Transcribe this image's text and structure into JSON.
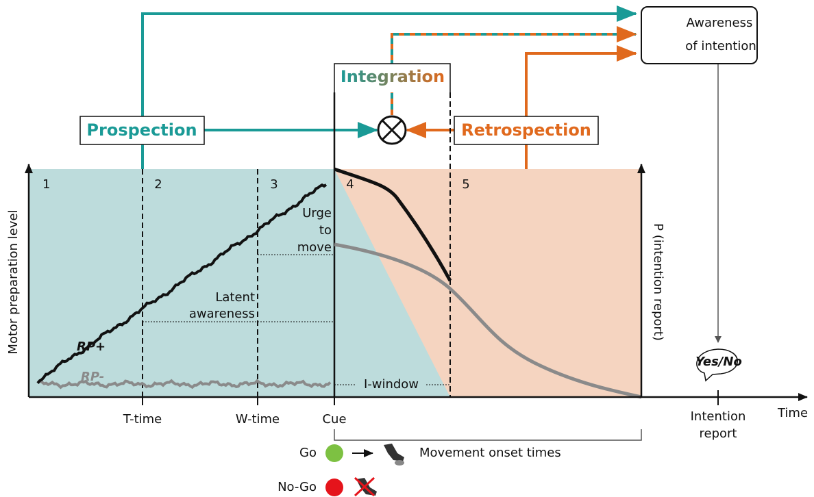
{
  "awareness_box": {
    "lines": [
      "Awareness",
      "of intention"
    ]
  },
  "integration": "Integration",
  "prospection": "Prospection",
  "retrospection": "Retrospection",
  "phases": [
    "1",
    "2",
    "3",
    "4",
    "5"
  ],
  "urge_label": [
    "Urge",
    "to",
    "move"
  ],
  "latent_label": [
    "Latent",
    "awareness"
  ],
  "rp_plus": "RP+",
  "rp_minus": "RP-",
  "i_window": "I-window",
  "y_axis_label": "Motor preparation level",
  "y2_axis_label": "P (intention report)",
  "report_bubble": "Yes/No",
  "x_ticks": [
    "T-time",
    "W-time",
    "Cue"
  ],
  "intention_report": [
    "Intention",
    "report"
  ],
  "x_axis_label": "Time",
  "legend": {
    "go": "Go",
    "movement_onset": "Movement onset times",
    "no_go": "No-Go"
  }
}
